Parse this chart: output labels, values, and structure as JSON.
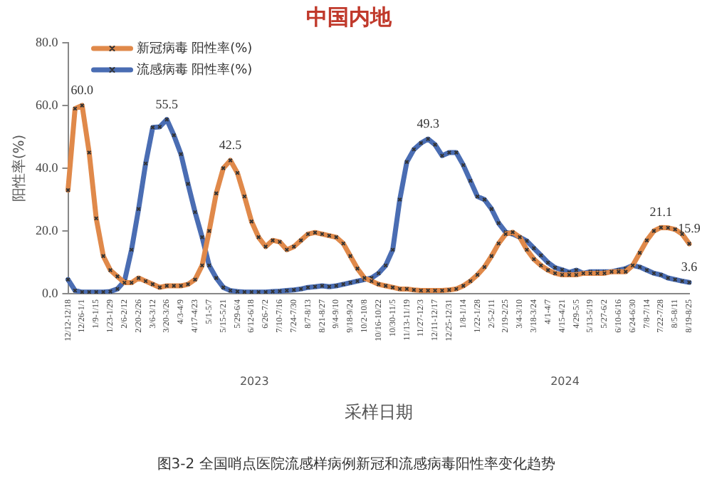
{
  "chart_data": {
    "type": "line",
    "title": "中国内地",
    "xlabel": "采样日期",
    "ylabel": "阳性率(%)",
    "categories": [
      "12/12-12/18",
      null,
      "12/26-1/1",
      null,
      "1/9-1/15",
      null,
      "1/23-1/29",
      null,
      "2/6-2/12",
      null,
      "2/20-2/26",
      null,
      "3/6-3/12",
      null,
      "3/20-3/26",
      null,
      "4/3-4/9",
      null,
      "4/17-4/23",
      null,
      "5/1-5/7",
      null,
      "5/15-5/21",
      null,
      "5/29-6/4",
      null,
      "6/12-6/18",
      null,
      "6/26-7/2",
      null,
      "7/10-7/16",
      null,
      "7/24-7/30",
      null,
      "8/7-8/13",
      null,
      "8/21-8/27",
      null,
      "9/4-9/10",
      null,
      "9/18-9/24",
      null,
      "10/2-10/8",
      null,
      "10/16-10/22",
      null,
      "10/30-11/5",
      null,
      "11/13-11/19",
      null,
      "11/27-12/3",
      null,
      "12/11-12/17",
      null,
      "12/25-12/31",
      null,
      "1/8-1/14",
      null,
      "1/22-1/28",
      null,
      "2/5-2/11",
      null,
      "2/19-2/25",
      null,
      "3/4-3/10",
      null,
      "3/18-3/24",
      null,
      "4/1-4/7",
      null,
      "4/15-4/21",
      null,
      "4/29-5/5",
      null,
      "5/13-5/19",
      null,
      "5/27-6/2",
      null,
      "6/10-6/16",
      null,
      "6/24-6/30",
      null,
      "7/8-7/14",
      null,
      "7/22-7/28",
      null,
      "8/5-8/11",
      null,
      "8/19-8/25"
    ],
    "series": [
      {
        "name": "新冠病毒 阳性率(%)",
        "color": "#e0894a",
        "values": [
          33,
          59,
          60.0,
          45,
          24,
          12,
          7.5,
          5.5,
          3.5,
          3.5,
          5,
          4,
          3,
          2,
          2.5,
          2.5,
          2.5,
          3,
          4.5,
          9,
          20,
          32,
          40,
          42.5,
          38.5,
          31,
          23,
          18,
          15,
          17,
          16.5,
          14,
          15,
          17,
          19,
          19.5,
          19,
          18.5,
          18,
          16,
          12,
          8,
          5,
          4,
          3,
          2.5,
          2,
          1.5,
          1.5,
          1.2,
          1,
          1,
          1,
          1,
          1.2,
          1.5,
          2.5,
          4,
          6,
          8.5,
          12,
          16,
          19,
          19.6,
          18,
          14,
          11,
          9,
          7.5,
          6.5,
          6,
          6,
          6,
          6.5,
          6.5,
          6.5,
          6.5,
          7,
          7,
          7,
          9,
          13,
          17,
          20,
          21.1,
          21,
          20.5,
          19,
          15.9
        ],
        "value_labels": [
          null,
          null,
          "60.0",
          null,
          null,
          null,
          null,
          null,
          null,
          null,
          null,
          null,
          null,
          null,
          null,
          null,
          null,
          null,
          null,
          null,
          null,
          null,
          null,
          "42.5",
          null,
          null,
          null,
          null,
          null,
          null,
          null,
          null,
          null,
          null,
          null,
          null,
          null,
          null,
          null,
          null,
          null,
          null,
          null,
          null,
          null,
          null,
          null,
          null,
          null,
          null,
          null,
          null,
          null,
          null,
          null,
          null,
          null,
          null,
          null,
          null,
          null,
          null,
          null,
          null,
          null,
          null,
          null,
          null,
          null,
          null,
          null,
          null,
          null,
          null,
          null,
          null,
          null,
          null,
          null,
          null,
          null,
          null,
          null,
          null,
          "21.1",
          null,
          null,
          null,
          "15.9"
        ]
      },
      {
        "name": "流感病毒 阳性率(%)",
        "color": "#4a6db3",
        "values": [
          4.5,
          1,
          0.5,
          0.5,
          0.5,
          0.5,
          0.7,
          1.5,
          4,
          14,
          27,
          41.5,
          53,
          53.2,
          55.5,
          50.5,
          44.5,
          35,
          26,
          18,
          9,
          5,
          2,
          1,
          0.7,
          0.5,
          0.5,
          0.5,
          0.5,
          0.7,
          0.8,
          1,
          1.2,
          1.5,
          2,
          2.2,
          2.5,
          2.2,
          2.5,
          3,
          3.5,
          4,
          4.5,
          5,
          6.5,
          9,
          14,
          30,
          42,
          46,
          48,
          49.3,
          47.5,
          44,
          45,
          45,
          41,
          36,
          31,
          30,
          27,
          22.5,
          19.6,
          19,
          18,
          16.8,
          14.5,
          12.2,
          9.9,
          8.3,
          7.6,
          6.8,
          7.5,
          6.5,
          7,
          7,
          7,
          7,
          7.5,
          8,
          9,
          8.5,
          7.5,
          6.5,
          6,
          5,
          4.5,
          4,
          3.6
        ],
        "value_labels": [
          null,
          null,
          null,
          null,
          null,
          null,
          null,
          null,
          null,
          null,
          null,
          null,
          null,
          null,
          "55.5",
          null,
          null,
          null,
          null,
          null,
          null,
          null,
          null,
          null,
          null,
          null,
          null,
          null,
          null,
          null,
          null,
          null,
          null,
          null,
          null,
          null,
          null,
          null,
          null,
          null,
          null,
          null,
          null,
          null,
          null,
          null,
          null,
          null,
          null,
          null,
          null,
          "49.3",
          null,
          null,
          null,
          null,
          null,
          null,
          null,
          null,
          null,
          null,
          null,
          null,
          null,
          null,
          null,
          null,
          null,
          null,
          null,
          null,
          null,
          null,
          null,
          null,
          null,
          null,
          null,
          null,
          null,
          null,
          null,
          null,
          null,
          null,
          null,
          null,
          "3.6"
        ]
      }
    ],
    "ylim": [
      0,
      80
    ],
    "yticks": [
      {
        "value": 0,
        "label": "0.0"
      },
      {
        "value": 20,
        "label": "20.0"
      },
      {
        "value": 40,
        "label": "40.0"
      },
      {
        "value": 60,
        "label": "60.0"
      },
      {
        "value": 80,
        "label": "80.0"
      }
    ],
    "grid": false,
    "legend": "top left",
    "marker": "cross",
    "line_style": "solid",
    "annotations": [
      "2023",
      "2024",
      "图3-2 全国哨点医院流感样病例新冠和流感病毒阳性率变化趋势"
    ]
  }
}
